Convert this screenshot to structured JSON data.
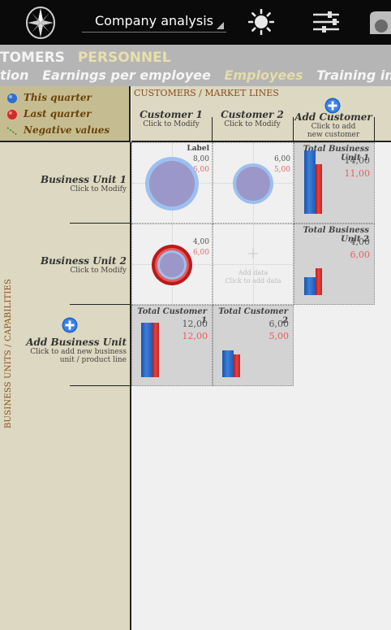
{
  "app": {
    "selected_view": "Company analysis"
  },
  "tabs_primary": [
    {
      "label": "TOMERS",
      "active": false
    },
    {
      "label": "PERSONNEL",
      "active": true
    }
  ],
  "tabs_secondary": [
    {
      "label": "tion",
      "active": false
    },
    {
      "label": "Earnings per employee",
      "active": false
    },
    {
      "label": "Employees",
      "active": true
    },
    {
      "label": "Training investment",
      "active": false
    }
  ],
  "legend": {
    "this_quarter": "This quarter",
    "last_quarter": "Last quarter",
    "negative_values": "Negative values"
  },
  "axis_labels": {
    "columns": "CUSTOMERS / MARKET LINES",
    "rows": "BUSINESS UNITS / CAPABILITIES"
  },
  "customers": [
    {
      "name": "Customer 1",
      "sub": "Click to Modify"
    },
    {
      "name": "Customer 2",
      "sub": "Click to Modify"
    }
  ],
  "add_customer": {
    "name": "Add Customer",
    "sub1": "Click to add",
    "sub2": "new customer"
  },
  "business_units": [
    {
      "name": "Business Unit 1",
      "sub": "Click to Modify"
    },
    {
      "name": "Business Unit 2",
      "sub": "Click to Modify"
    }
  ],
  "add_business_unit": {
    "name": "Add Business Unit",
    "sub1": "Click to add new business",
    "sub2": "unit / product line"
  },
  "cells": {
    "bu1_c1": {
      "label": "Label",
      "this_quarter": "8,00",
      "last_quarter": "6,00"
    },
    "bu1_c2": {
      "this_quarter": "6,00",
      "last_quarter": "5,00"
    },
    "bu2_c1": {
      "this_quarter": "4,00",
      "last_quarter": "6,00"
    },
    "bu2_c2": {
      "add_label": "Add data",
      "add_sub": "Click to add data"
    }
  },
  "totals_bu": [
    {
      "title": "Total Business Unit 1",
      "this_quarter": "14,00",
      "last_quarter": "11,00",
      "this_value": 14,
      "last_value": 11
    },
    {
      "title": "Total Business Unit 2",
      "this_quarter": "4,00",
      "last_quarter": "6,00",
      "this_value": 4,
      "last_value": 6
    }
  ],
  "totals_customer": [
    {
      "title": "Total Customer 1",
      "this_quarter": "12,00",
      "last_quarter": "12,00",
      "this_value": 12,
      "last_value": 12
    },
    {
      "title": "Total Customer 2",
      "this_quarter": "6,00",
      "last_quarter": "5,00",
      "this_value": 6,
      "last_value": 5
    }
  ],
  "colors": {
    "top_bar": "#0a0a0a",
    "tab_bar": "#b5b5b5",
    "panel_beige": "#dcd8c1",
    "legend_bg": "#c5bd91",
    "accent_brown": "#8a4d1a",
    "this_quarter_blue": "#2f6fcf",
    "last_quarter_red": "#d42a2a"
  },
  "icons": {
    "logo": "compass-icon",
    "theme": "sun-icon",
    "filters": "sliders-icon",
    "profile": "profile-icon"
  }
}
